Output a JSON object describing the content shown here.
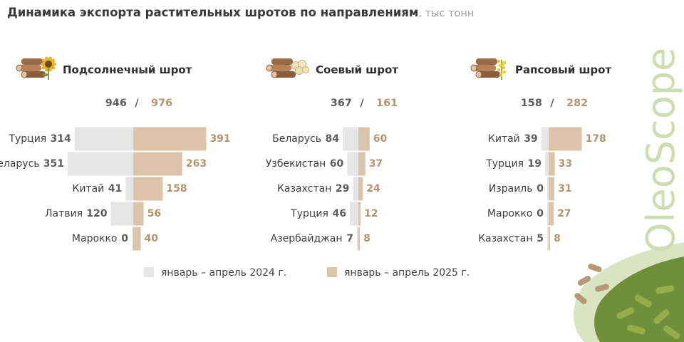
{
  "title": "Динамика экспорта растительных шротов по направлениям",
  "unit": ", тыс тонн",
  "brand": "OleoScope",
  "colors": {
    "y2024": "#e6e6e6",
    "y2025": "#dcc4aa",
    "v2024": "#5d5d5d",
    "v2025": "#b3966f",
    "slash": "#5d5d5d"
  },
  "legend": {
    "y2024": "январь – апрель 2024 г.",
    "y2025": "январь – апрель 2025 г."
  },
  "chart_data": [
    {
      "type": "bar",
      "title": "Подсолнечный шрот",
      "icon": "sunflower-icon",
      "totals": {
        "y2024": 946,
        "y2025": 976
      },
      "categories": [
        "Турция",
        "Беларусь",
        "Китай",
        "Латвия",
        "Марокко"
      ],
      "series": [
        {
          "name": "январь – апрель 2024 г.",
          "values": [
            314,
            351,
            41,
            120,
            0
          ]
        },
        {
          "name": "январь – апрель 2025 г.",
          "values": [
            391,
            263,
            158,
            56,
            40
          ]
        }
      ]
    },
    {
      "type": "bar",
      "title": "Соевый шрот",
      "icon": "soybean-icon",
      "totals": {
        "y2024": 367,
        "y2025": 161
      },
      "categories": [
        "Беларусь",
        "Узбекистан",
        "Казахстан",
        "Турция",
        "Азербайджан"
      ],
      "series": [
        {
          "name": "январь – апрель 2024 г.",
          "values": [
            84,
            60,
            29,
            46,
            7
          ]
        },
        {
          "name": "январь – апрель 2025 г.",
          "values": [
            60,
            37,
            24,
            12,
            8
          ]
        }
      ]
    },
    {
      "type": "bar",
      "title": "Рапсовый шрот",
      "icon": "rapeseed-icon",
      "totals": {
        "y2024": 158,
        "y2025": 282
      },
      "categories": [
        "Китай",
        "Турция",
        "Израиль",
        "Марокко",
        "Казахстан"
      ],
      "series": [
        {
          "name": "январь – апрель 2024 г.",
          "values": [
            39,
            19,
            0,
            0,
            5
          ]
        },
        {
          "name": "январь – апрель 2025 г.",
          "values": [
            178,
            33,
            31,
            27,
            8
          ]
        }
      ]
    }
  ]
}
